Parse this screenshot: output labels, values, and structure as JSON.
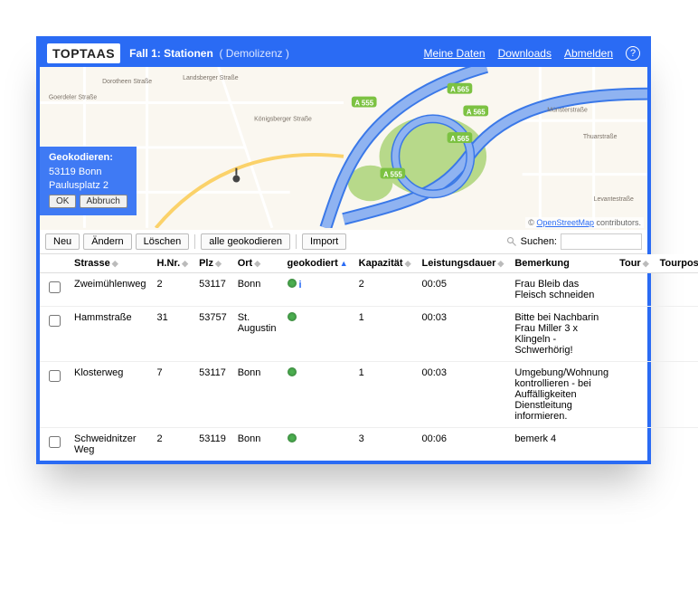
{
  "header": {
    "logo_pre": "TOPT",
    "logo_post": "AAS",
    "title": "Fall 1: Stationen",
    "demo": "( Demolizenz )",
    "links": {
      "meine_daten": "Meine Daten",
      "downloads": "Downloads",
      "abmelden": "Abmelden"
    }
  },
  "map": {
    "roads": {
      "minor_color": "#ffffff",
      "mid_color": "#fbd26a",
      "highway_color": "#8fb3f1",
      "highway_stroke": "#3a78e8",
      "land_color": "#faf7f0",
      "green_color": "#b7d98a",
      "badge_fill": "#7cc242",
      "badge_text_color": "#ffffff",
      "label_color": "#7b7268",
      "highway_labels": [
        "A 555",
        "A 555",
        "A 565",
        "A 565",
        "A 565"
      ],
      "street_labels": [
        "Dorotheen Straße",
        "Goerdeler Straße",
        "Landsberger Straße",
        "Königsberger Straße",
        "Münsterstraße",
        "Thuarstraße",
        "Levantestraße"
      ]
    },
    "geocode": {
      "heading": "Geokodieren:",
      "line1": "53119 Bonn",
      "line2": "Paulusplatz 2",
      "ok": "OK",
      "cancel": "Abbruch"
    },
    "attribution": {
      "pre": "© ",
      "link": "OpenStreetMap",
      "post": " contributors."
    }
  },
  "toolbar": {
    "neu": "Neu",
    "aendern": "Ändern",
    "loeschen": "Löschen",
    "alle_geo": "alle geokodieren",
    "import": "Import",
    "suchen_label": "Suchen:",
    "suchen_value": ""
  },
  "table": {
    "columns": {
      "strasse": "Strasse",
      "hnr": "H.Nr.",
      "plz": "Plz",
      "ort": "Ort",
      "geo": "geokodiert",
      "kap": "Kapazität",
      "dauer": "Leistungsdauer",
      "bem": "Bemerkung",
      "tour": "Tour",
      "tourpos": "Tourpos"
    },
    "sort_column": "geo",
    "sort_dir": "asc",
    "rows": [
      {
        "strasse": "Zweimühlenweg",
        "hnr": "2",
        "plz": "53117",
        "ort": "Bonn",
        "geo_info": true,
        "kap": "2",
        "dauer": "00:05",
        "bem": "Frau Bleib das Fleisch schneiden"
      },
      {
        "strasse": "Hammstraße",
        "hnr": "31",
        "plz": "53757",
        "ort": "St. Augustin",
        "geo_info": false,
        "kap": "1",
        "dauer": "00:03",
        "bem": "Bitte bei Nachbarin Frau Miller 3 x Klingeln - Schwerhörig!"
      },
      {
        "strasse": "Klosterweg",
        "hnr": "7",
        "plz": "53117",
        "ort": "Bonn",
        "geo_info": false,
        "kap": "1",
        "dauer": "00:03",
        "bem": "Umgebung/Wohnung kontrollieren - bei Auffälligkeiten Dienstleitung informieren."
      },
      {
        "strasse": "Schweidnitzer Weg",
        "hnr": "2",
        "plz": "53119",
        "ort": "Bonn",
        "geo_info": false,
        "kap": "3",
        "dauer": "00:06",
        "bem": "bemerk 4"
      }
    ]
  }
}
